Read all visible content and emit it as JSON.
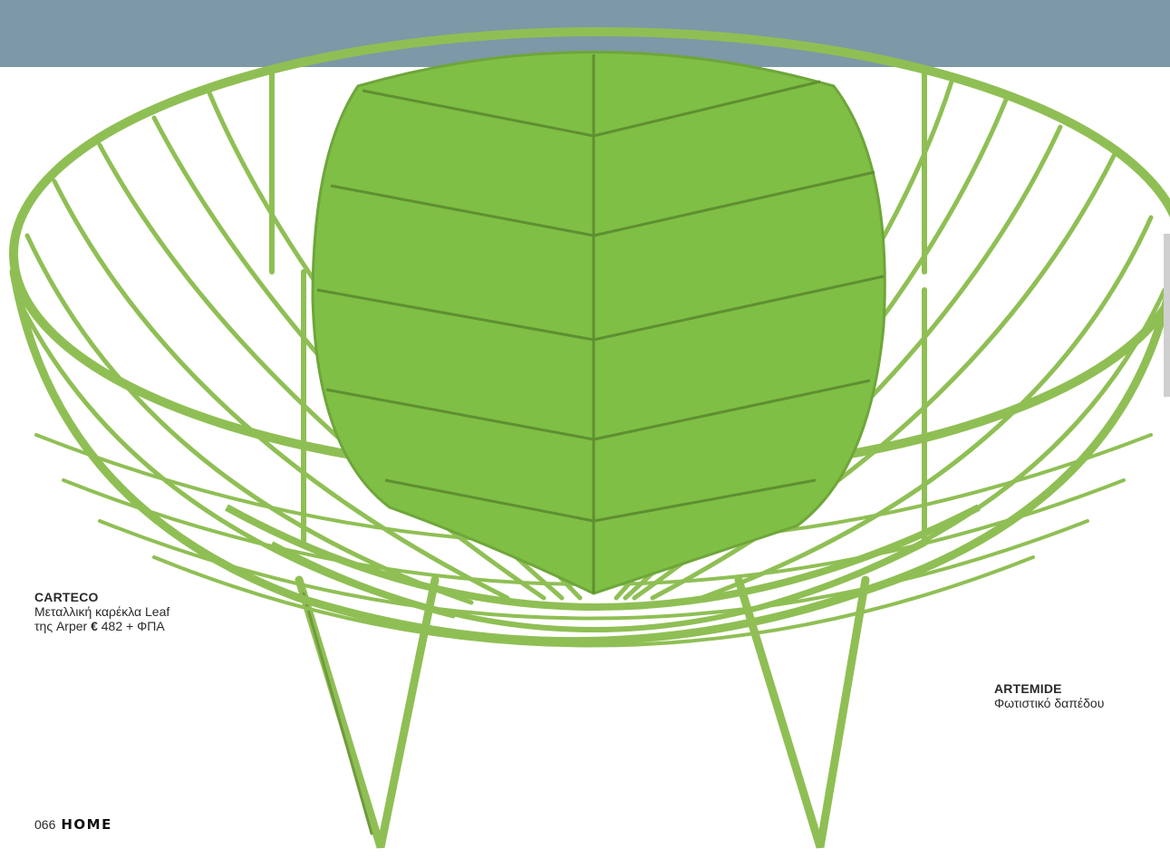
{
  "captions": {
    "left": {
      "brand": "CARTECO",
      "line1": "Μεταλλική καρέκλα Leaf",
      "line2_prefix": "της Arper",
      "price_symbol": "€",
      "price": "482 + ΦΠΑ"
    },
    "right": {
      "brand": "ARTEMIDE",
      "line1": "Φωτιστικό δαπέδου"
    }
  },
  "footer": {
    "page_number": "066",
    "magazine": "HOME"
  },
  "colors": {
    "band": "#7d98a6",
    "chair_wire": "#8fbf54",
    "chair_seat": "#7fbf45",
    "text": "#2a2a2a"
  }
}
